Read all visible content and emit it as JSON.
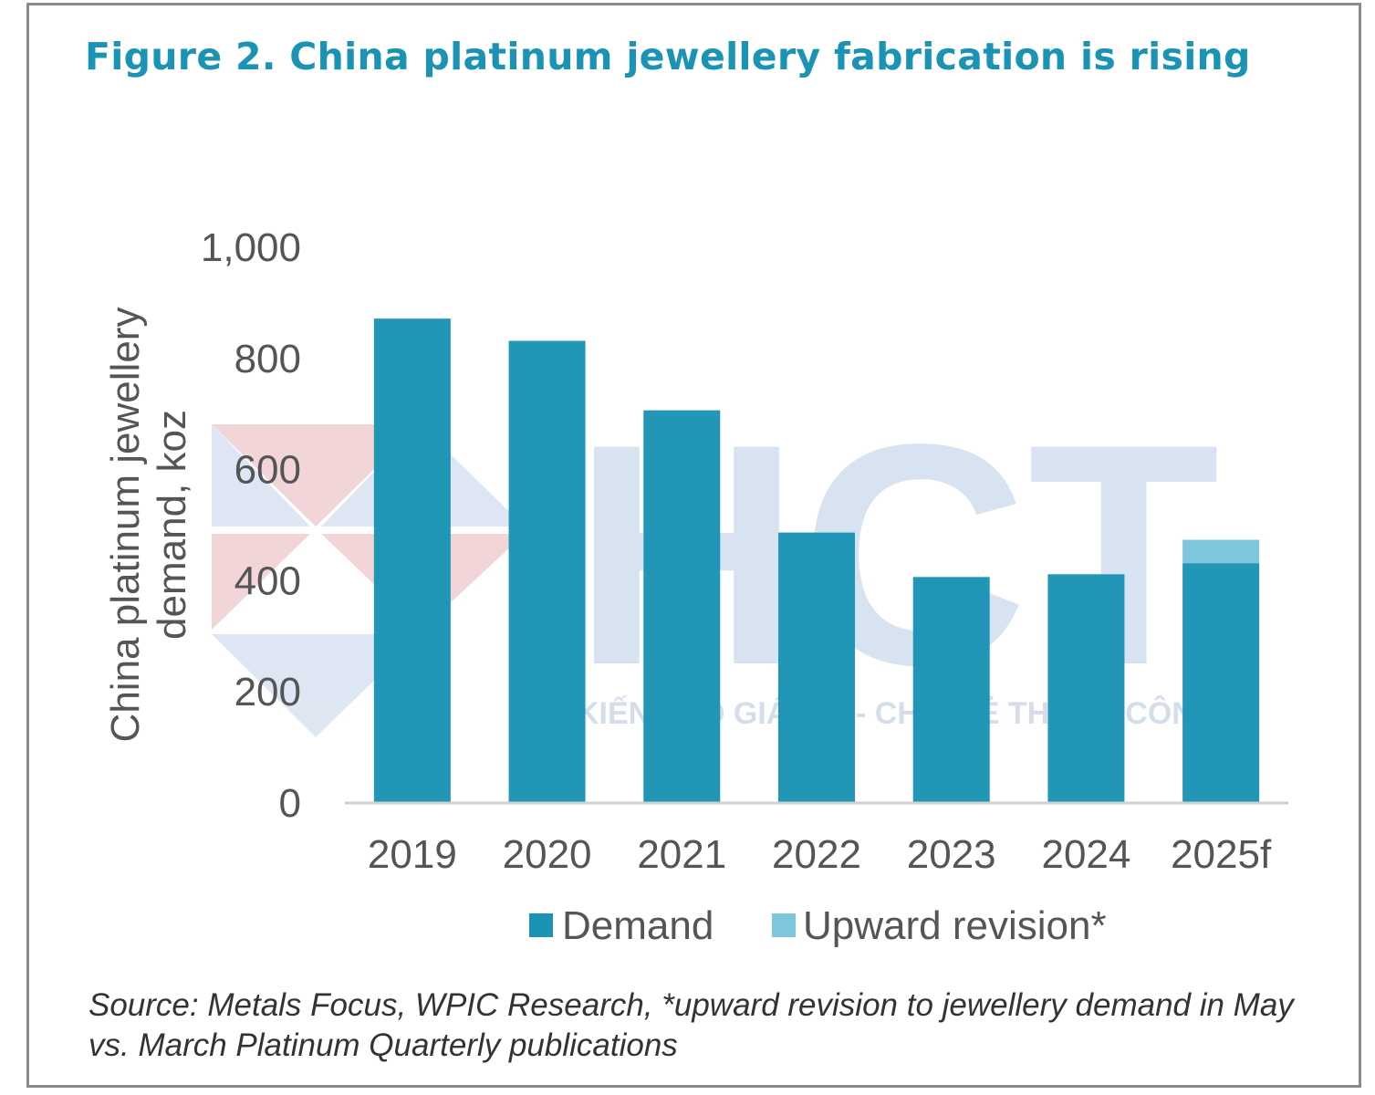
{
  "figure": {
    "title": "Figure 2. China platinum jewellery fabrication is rising",
    "source": "Source: Metals Focus, WPIC Research, *upward revision to jewellery demand in May vs. March Platinum Quarterly publications"
  },
  "watermark": {
    "logo_text": "HCT",
    "tagline": "KIẾN TẠO GIÁ TRỊ - CHIA SẺ THÀNH CÔNG"
  },
  "colors": {
    "title": "#1a93b5",
    "demand": "#1a93b5",
    "revision": "#7dc6dc",
    "axis": "#d0d0d0",
    "text": "#555555"
  },
  "chart_data": {
    "type": "bar",
    "stacked": true,
    "categories": [
      "2019",
      "2020",
      "2021",
      "2022",
      "2023",
      "2024",
      "2025f"
    ],
    "series": [
      {
        "name": "Demand",
        "values": [
          870,
          830,
          705,
          485,
          405,
          410,
          430
        ]
      },
      {
        "name": "Upward revision*",
        "values": [
          0,
          0,
          0,
          0,
          0,
          0,
          42
        ]
      }
    ],
    "ylabel": "China platinum jewellery demand, koz",
    "ylabel_lines": [
      "China platinum jewellery",
      "demand, koz"
    ],
    "ylim": [
      0,
      1000
    ],
    "yticks": [
      0,
      200,
      400,
      600,
      800,
      1000
    ],
    "ytick_labels": [
      "0",
      "200",
      "400",
      "600",
      "800",
      "1,000"
    ],
    "grid": false,
    "legend": "bottom"
  }
}
